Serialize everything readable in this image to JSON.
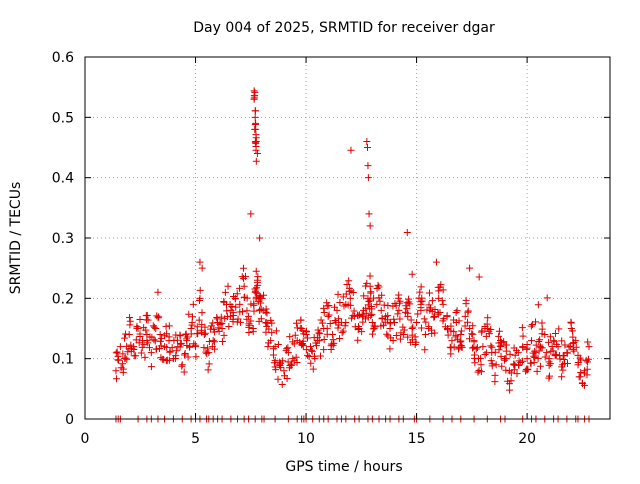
{
  "chart_data": {
    "type": "scatter",
    "title": "Day 004 of 2025, SRMTID for receiver dgar",
    "xlabel": "GPS time / hours",
    "ylabel": "SRMTID / TECUs",
    "xlim": [
      0,
      23.75
    ],
    "ylim": [
      0,
      0.6
    ],
    "grid": true,
    "x_ticks": [
      0,
      5,
      10,
      15,
      20
    ],
    "x_tick_labels": [
      "0",
      "5",
      "10",
      "15",
      "20"
    ],
    "y_ticks": [
      0,
      0.1,
      0.2,
      0.3,
      0.4,
      0.5,
      0.6
    ],
    "y_tick_labels": [
      "0",
      "0.1",
      "0.2",
      "0.3",
      "0.4",
      "0.5",
      "0.6"
    ],
    "marker": "plus",
    "color": "#e00000",
    "series": [
      {
        "name": "SRMTID",
        "x": [
          1.4,
          1.6,
          1.8,
          2.0,
          2.2,
          2.4,
          2.6,
          2.8,
          3.0,
          3.2,
          3.4,
          3.6,
          3.8,
          4.0,
          4.2,
          4.4,
          4.6,
          4.8,
          5.0,
          5.2,
          5.4,
          5.6,
          5.8,
          6.0,
          6.2,
          6.4,
          6.6,
          6.8,
          7.0,
          7.2,
          7.4,
          7.6,
          7.7,
          7.8,
          7.9,
          8.0,
          8.2,
          8.4,
          8.6,
          8.8,
          9.0,
          9.2,
          9.4,
          9.6,
          9.8,
          10.0,
          10.2,
          10.4,
          10.6,
          10.8,
          11.0,
          11.2,
          11.4,
          11.6,
          11.8,
          12.0,
          12.2,
          12.4,
          12.6,
          12.8,
          12.9,
          13.0,
          13.2,
          13.4,
          13.6,
          13.8,
          14.0,
          14.2,
          14.4,
          14.6,
          14.8,
          15.0,
          15.2,
          15.4,
          15.6,
          15.8,
          16.0,
          16.2,
          16.4,
          16.6,
          16.8,
          17.0,
          17.2,
          17.4,
          17.6,
          17.8,
          18.0,
          18.2,
          18.4,
          18.6,
          18.8,
          19.0,
          19.2,
          19.4,
          19.6,
          19.8,
          20.0,
          20.2,
          20.4,
          20.6,
          20.8,
          21.0,
          21.2,
          21.4,
          21.6,
          21.8,
          22.0,
          22.2,
          22.4,
          22.6,
          22.8,
          7.65,
          7.7,
          7.72,
          7.75,
          7.8,
          12.75,
          12.78,
          12.8,
          12.82,
          12.85,
          12.9,
          7.5,
          7.9,
          5.2,
          5.3,
          3.3,
          4.9,
          17.4,
          15.9,
          14.8
        ],
        "y": [
          0.08,
          0.12,
          0.1,
          0.14,
          0.12,
          0.15,
          0.13,
          0.14,
          0.11,
          0.15,
          0.14,
          0.12,
          0.13,
          0.1,
          0.12,
          0.09,
          0.13,
          0.15,
          0.12,
          0.2,
          0.14,
          0.11,
          0.13,
          0.16,
          0.15,
          0.19,
          0.18,
          0.2,
          0.19,
          0.22,
          0.17,
          0.15,
          0.21,
          0.23,
          0.18,
          0.2,
          0.16,
          0.13,
          0.12,
          0.09,
          0.08,
          0.11,
          0.1,
          0.13,
          0.15,
          0.14,
          0.12,
          0.1,
          0.13,
          0.15,
          0.17,
          0.14,
          0.18,
          0.16,
          0.19,
          0.2,
          0.17,
          0.15,
          0.18,
          0.2,
          0.22,
          0.16,
          0.19,
          0.18,
          0.17,
          0.15,
          0.16,
          0.18,
          0.14,
          0.17,
          0.15,
          0.16,
          0.19,
          0.14,
          0.18,
          0.17,
          0.2,
          0.19,
          0.15,
          0.13,
          0.16,
          0.14,
          0.17,
          0.15,
          0.13,
          0.1,
          0.12,
          0.15,
          0.11,
          0.09,
          0.12,
          0.1,
          0.08,
          0.09,
          0.11,
          0.12,
          0.1,
          0.13,
          0.11,
          0.12,
          0.14,
          0.1,
          0.13,
          0.12,
          0.09,
          0.11,
          0.15,
          0.13,
          0.07,
          0.08,
          0.12,
          0.53,
          0.5,
          0.48,
          0.46,
          0.44,
          0.46,
          0.45,
          0.42,
          0.4,
          0.34,
          0.32,
          0.34,
          0.3,
          0.26,
          0.25,
          0.21,
          0.19,
          0.25,
          0.26,
          0.24
        ],
        "zero_marker_x": [
          1.4,
          1.5,
          1.6,
          2.4,
          2.8,
          3.0,
          3.3,
          3.6,
          4.0,
          4.4,
          4.8,
          5.0,
          5.2,
          5.5,
          5.6,
          5.8,
          6.0,
          6.2,
          6.6,
          6.9,
          7.2,
          7.4,
          7.7,
          8.0,
          8.1,
          8.6,
          9.2,
          9.6,
          9.8,
          9.9,
          10.0,
          10.3,
          10.6,
          10.8,
          11.0,
          11.4,
          11.6,
          11.8,
          12.2,
          12.4,
          12.8,
          13.0,
          13.3,
          13.6,
          13.8,
          14.2,
          14.4,
          14.9,
          15.0,
          15.6,
          16.2,
          16.6,
          17.0,
          17.6,
          18.2,
          18.8,
          19.0,
          19.8,
          20.2,
          20.4,
          20.8,
          21.2,
          21.4,
          21.8,
          22.2,
          22.3,
          22.6,
          22.8
        ]
      }
    ]
  }
}
